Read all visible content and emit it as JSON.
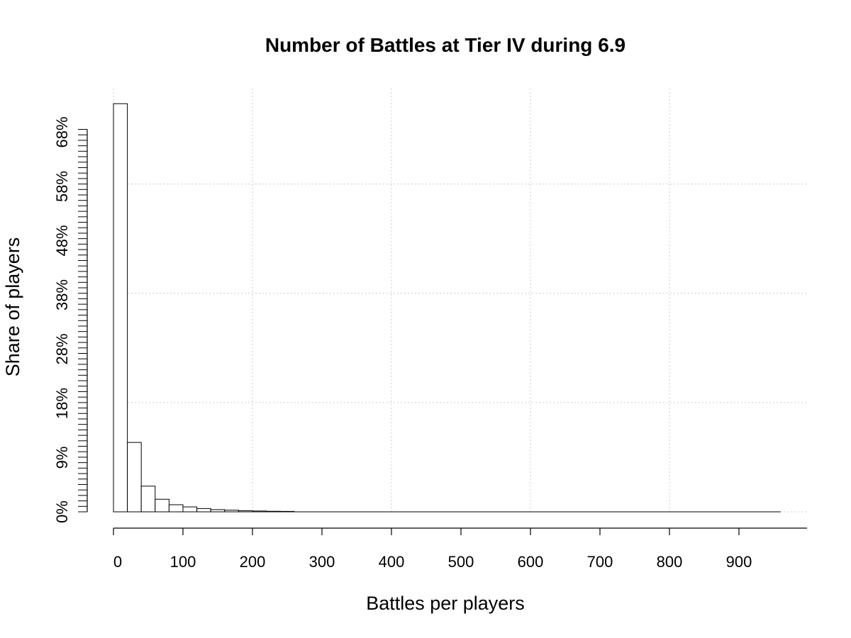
{
  "chart_data": {
    "type": "bar",
    "title": "Number of Battles at Tier IV during 6.9",
    "xlabel": "Battles per players",
    "ylabel": "Share of players",
    "x_ticks": [
      0,
      100,
      200,
      300,
      400,
      500,
      600,
      700,
      800,
      900
    ],
    "x_tick_labels": [
      "0",
      "100",
      "200",
      "300",
      "400",
      "500",
      "600",
      "700",
      "800",
      "900"
    ],
    "xlim": [
      0,
      1000
    ],
    "y_tick_labels": [
      "0%",
      "9%",
      "18%",
      "28%",
      "38%",
      "48%",
      "58%",
      "68%"
    ],
    "y_tick_values": [
      0.0,
      0.09,
      0.18,
      0.28,
      0.38,
      0.48,
      0.58,
      0.68
    ],
    "ylim": [
      0,
      0.75
    ],
    "bin_width": 20,
    "bin_starts": [
      0,
      20,
      40,
      60,
      80,
      100,
      120,
      140,
      160,
      180,
      200,
      220,
      240
    ],
    "values": [
      0.747,
      0.127,
      0.047,
      0.023,
      0.013,
      0.009,
      0.006,
      0.004,
      0.003,
      0.002,
      0.0015,
      0.001,
      0.0008
    ],
    "x_max_data": 960,
    "grid": true
  }
}
